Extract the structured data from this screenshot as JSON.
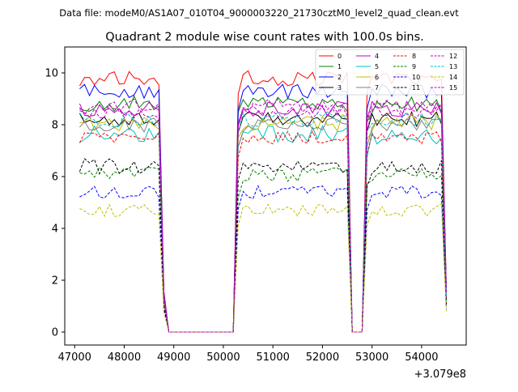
{
  "header": {
    "data_file": "Data file: modeM0/AS1A07_010T04_9000003220_21730cztM0_level2_quad_clean.evt"
  },
  "chart_data": {
    "type": "line",
    "title": "Quadrant 2 module wise count rates with 100.0s bins.",
    "xlabel": "",
    "ylabel": "",
    "offset_label": "+3.079e8",
    "xlim": [
      46800,
      54900
    ],
    "ylim": [
      -0.5,
      11.0
    ],
    "x_ticks": [
      47000,
      48000,
      49000,
      50000,
      51000,
      52000,
      53000,
      54000
    ],
    "x_tick_labels": [
      "47000",
      "48000",
      "49000",
      "50000",
      "51000",
      "52000",
      "53000",
      "54000"
    ],
    "y_ticks": [
      0,
      2,
      4,
      6,
      8,
      10
    ],
    "y_tick_labels": [
      "0",
      "2",
      "4",
      "6",
      "8",
      "10"
    ],
    "grid": false,
    "legend_placement": "top-right",
    "legend_columns": 4,
    "segments": [
      {
        "start": 47100,
        "end": 48700
      },
      {
        "start": 50300,
        "end": 52500
      },
      {
        "start": 52900,
        "end": 54400
      }
    ],
    "gap_points": [
      {
        "x": 48800,
        "f": 0.16
      },
      {
        "x": 48900,
        "f": 0.0
      },
      {
        "x": 50200,
        "f": 0.0
      },
      {
        "x": 52600,
        "f": 0.0
      },
      {
        "x": 52800,
        "f": 0.0
      },
      {
        "x": 54500,
        "f": 0.17
      }
    ],
    "series": [
      {
        "name": "0",
        "color": "#ff0000",
        "dash": "solid",
        "level": 9.8,
        "amp": 0.3
      },
      {
        "name": "1",
        "color": "#008000",
        "dash": "solid",
        "level": 8.8,
        "amp": 0.35
      },
      {
        "name": "2",
        "color": "#0000ff",
        "dash": "solid",
        "level": 9.3,
        "amp": 0.3
      },
      {
        "name": "3",
        "color": "#000000",
        "dash": "solid",
        "level": 8.2,
        "amp": 0.3
      },
      {
        "name": "4",
        "color": "#bf00bf",
        "dash": "solid",
        "level": 8.6,
        "amp": 0.3
      },
      {
        "name": "5",
        "color": "#00bfbf",
        "dash": "solid",
        "level": 7.6,
        "amp": 0.35
      },
      {
        "name": "6",
        "color": "#bfbf00",
        "dash": "solid",
        "level": 8.1,
        "amp": 0.35
      },
      {
        "name": "7",
        "color": "#808080",
        "dash": "solid",
        "level": 8.0,
        "amp": 0.3
      },
      {
        "name": "8",
        "color": "#ff0000",
        "dash": "dashed",
        "level": 7.5,
        "amp": 0.25
      },
      {
        "name": "9",
        "color": "#008000",
        "dash": "dashed",
        "level": 6.1,
        "amp": 0.3
      },
      {
        "name": "10",
        "color": "#0000ff",
        "dash": "dashed",
        "level": 5.4,
        "amp": 0.25
      },
      {
        "name": "11",
        "color": "#000000",
        "dash": "dashed",
        "level": 6.4,
        "amp": 0.3
      },
      {
        "name": "12",
        "color": "#bf00bf",
        "dash": "dashed",
        "level": 8.5,
        "amp": 0.25
      },
      {
        "name": "13",
        "color": "#00bfbf",
        "dash": "dashed",
        "level": 8.2,
        "amp": 0.3
      },
      {
        "name": "14",
        "color": "#bfbf00",
        "dash": "dashed",
        "level": 4.7,
        "amp": 0.25
      },
      {
        "name": "15",
        "color": "#bf00bf",
        "dash": "dashed",
        "level": 8.7,
        "amp": 0.3
      }
    ]
  }
}
